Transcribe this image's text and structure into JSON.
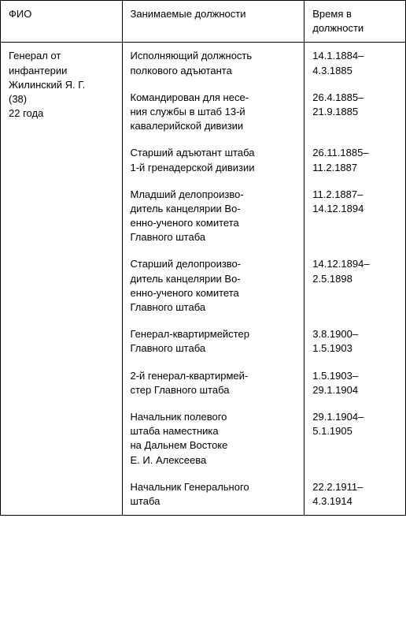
{
  "table": {
    "columns": [
      "ФИО",
      "Занимаемые должности",
      "Время в должности"
    ],
    "person": {
      "name_lines": [
        "Генерал от",
        "инфантерии",
        "Жилинский Я. Г.",
        "(38)",
        "22 года"
      ]
    },
    "positions": [
      {
        "text_lines": [
          "Исполняющий должность",
          "полкового адъютанта"
        ],
        "date_lines": [
          "14.1.1884–",
          "4.3.1885"
        ]
      },
      {
        "text_lines": [
          "Командирован для несе-",
          "ния службы в штаб 13-й",
          "кавалерийской дивизии"
        ],
        "date_lines": [
          "26.4.1885–",
          "21.9.1885"
        ]
      },
      {
        "text_lines": [
          "Старший адъютант штаба",
          "1-й гренадерской дивизии"
        ],
        "date_lines": [
          "26.11.1885–",
          "11.2.1887"
        ]
      },
      {
        "text_lines": [
          "Младший делопроизво-",
          "дитель канцелярии Во-",
          "енно-ученого комитета",
          "Главного штаба"
        ],
        "date_lines": [
          "11.2.1887–",
          "14.12.1894"
        ]
      },
      {
        "text_lines": [
          "Старший делопроизво-",
          "дитель канцелярии Во-",
          "енно-ученого комитета",
          "Главного штаба"
        ],
        "date_lines": [
          "14.12.1894–",
          "2.5.1898"
        ]
      },
      {
        "text_lines": [
          "Генерал-квартирмейстер",
          "Главного штаба"
        ],
        "date_lines": [
          "3.8.1900–",
          "1.5.1903"
        ]
      },
      {
        "text_lines": [
          "2-й генерал-квартирмей-",
          "стер Главного штаба"
        ],
        "date_lines": [
          "1.5.1903–",
          "29.1.1904"
        ]
      },
      {
        "text_lines": [
          "Начальник полевого",
          "штаба наместника",
          "на Дальнем Востоке",
          "Е. И. Алексеева"
        ],
        "date_lines": [
          "29.1.1904–",
          "5.1.1905"
        ]
      },
      {
        "text_lines": [
          "Начальник Генерального",
          "штаба"
        ],
        "date_lines": [
          "22.2.1911–",
          "4.3.1914"
        ]
      }
    ]
  }
}
